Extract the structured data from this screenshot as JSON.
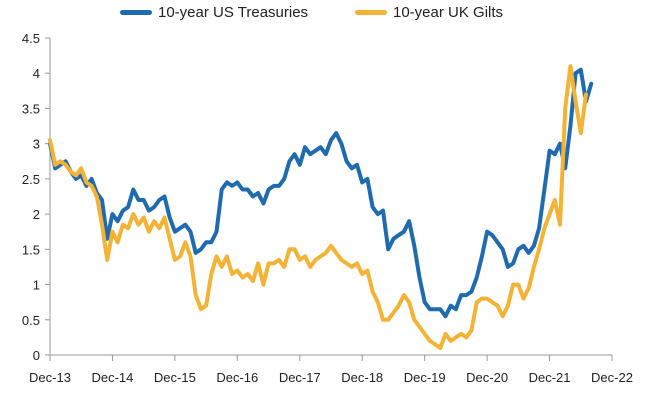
{
  "chart_data": {
    "type": "line",
    "title": "",
    "xlabel": "",
    "ylabel": "",
    "ylim": [
      0,
      4.5
    ],
    "yticks": [
      "0",
      "0.5",
      "1",
      "1.5",
      "2",
      "2.5",
      "3",
      "3.5",
      "4",
      "4.5"
    ],
    "xtick_labels": [
      "Dec-13",
      "Dec-14",
      "Dec-15",
      "Dec-16",
      "Dec-17",
      "Dec-18",
      "Dec-19",
      "Dec-20",
      "Dec-21",
      "Dec-22"
    ],
    "x_unit": "months since Dec-13",
    "grid": false,
    "legend_position": "top",
    "series": [
      {
        "name": "10-year US Treasuries",
        "color": "#1F6BB0",
        "points": [
          [
            0,
            3.0
          ],
          [
            1,
            2.65
          ],
          [
            2,
            2.7
          ],
          [
            3,
            2.75
          ],
          [
            4,
            2.6
          ],
          [
            5,
            2.5
          ],
          [
            6,
            2.55
          ],
          [
            7,
            2.4
          ],
          [
            8,
            2.5
          ],
          [
            9,
            2.3
          ],
          [
            10,
            2.2
          ],
          [
            11,
            1.65
          ],
          [
            12,
            2.0
          ],
          [
            13,
            1.9
          ],
          [
            14,
            2.05
          ],
          [
            15,
            2.1
          ],
          [
            16,
            2.35
          ],
          [
            17,
            2.2
          ],
          [
            18,
            2.2
          ],
          [
            19,
            2.05
          ],
          [
            20,
            2.1
          ],
          [
            21,
            2.2
          ],
          [
            22,
            2.25
          ],
          [
            23,
            1.95
          ],
          [
            24,
            1.75
          ],
          [
            25,
            1.8
          ],
          [
            26,
            1.85
          ],
          [
            27,
            1.75
          ],
          [
            28,
            1.45
          ],
          [
            29,
            1.5
          ],
          [
            30,
            1.6
          ],
          [
            31,
            1.6
          ],
          [
            32,
            1.75
          ],
          [
            33,
            2.35
          ],
          [
            34,
            2.45
          ],
          [
            35,
            2.4
          ],
          [
            36,
            2.45
          ],
          [
            37,
            2.35
          ],
          [
            38,
            2.35
          ],
          [
            39,
            2.25
          ],
          [
            40,
            2.3
          ],
          [
            41,
            2.15
          ],
          [
            42,
            2.35
          ],
          [
            43,
            2.4
          ],
          [
            44,
            2.4
          ],
          [
            45,
            2.5
          ],
          [
            46,
            2.75
          ],
          [
            47,
            2.85
          ],
          [
            48,
            2.7
          ],
          [
            49,
            2.95
          ],
          [
            50,
            2.85
          ],
          [
            51,
            2.9
          ],
          [
            52,
            2.95
          ],
          [
            53,
            2.85
          ],
          [
            54,
            3.05
          ],
          [
            55,
            3.15
          ],
          [
            56,
            3.0
          ],
          [
            57,
            2.75
          ],
          [
            58,
            2.65
          ],
          [
            59,
            2.7
          ],
          [
            60,
            2.45
          ],
          [
            61,
            2.5
          ],
          [
            62,
            2.1
          ],
          [
            63,
            2.0
          ],
          [
            64,
            2.05
          ],
          [
            65,
            1.5
          ],
          [
            66,
            1.65
          ],
          [
            67,
            1.7
          ],
          [
            68,
            1.75
          ],
          [
            69,
            1.9
          ],
          [
            70,
            1.55
          ],
          [
            71,
            1.1
          ],
          [
            72,
            0.75
          ],
          [
            73,
            0.65
          ],
          [
            74,
            0.65
          ],
          [
            75,
            0.65
          ],
          [
            76,
            0.55
          ],
          [
            77,
            0.7
          ],
          [
            78,
            0.65
          ],
          [
            79,
            0.85
          ],
          [
            80,
            0.85
          ],
          [
            81,
            0.9
          ],
          [
            82,
            1.1
          ],
          [
            83,
            1.4
          ],
          [
            84,
            1.75
          ],
          [
            85,
            1.7
          ],
          [
            86,
            1.6
          ],
          [
            87,
            1.5
          ],
          [
            88,
            1.25
          ],
          [
            89,
            1.3
          ],
          [
            90,
            1.5
          ],
          [
            91,
            1.55
          ],
          [
            92,
            1.45
          ],
          [
            93,
            1.55
          ],
          [
            94,
            1.8
          ],
          [
            95,
            2.35
          ],
          [
            96,
            2.9
          ],
          [
            97,
            2.85
          ],
          [
            98,
            3.0
          ],
          [
            99,
            2.65
          ],
          [
            100,
            3.25
          ],
          [
            101,
            4.0
          ],
          [
            102,
            4.05
          ],
          [
            103,
            3.6
          ],
          [
            104,
            3.85
          ]
        ]
      },
      {
        "name": "10-year UK Gilts",
        "color": "#F5B335",
        "points": [
          [
            0,
            3.05
          ],
          [
            1,
            2.7
          ],
          [
            2,
            2.75
          ],
          [
            3,
            2.7
          ],
          [
            4,
            2.6
          ],
          [
            5,
            2.55
          ],
          [
            6,
            2.65
          ],
          [
            7,
            2.45
          ],
          [
            8,
            2.4
          ],
          [
            9,
            2.25
          ],
          [
            10,
            1.85
          ],
          [
            11,
            1.35
          ],
          [
            12,
            1.75
          ],
          [
            13,
            1.6
          ],
          [
            14,
            1.85
          ],
          [
            15,
            1.8
          ],
          [
            16,
            2.0
          ],
          [
            17,
            1.85
          ],
          [
            18,
            1.95
          ],
          [
            19,
            1.75
          ],
          [
            20,
            1.9
          ],
          [
            21,
            1.8
          ],
          [
            22,
            1.95
          ],
          [
            23,
            1.65
          ],
          [
            24,
            1.35
          ],
          [
            25,
            1.4
          ],
          [
            26,
            1.6
          ],
          [
            27,
            1.4
          ],
          [
            28,
            0.85
          ],
          [
            29,
            0.65
          ],
          [
            30,
            0.7
          ],
          [
            31,
            1.15
          ],
          [
            32,
            1.4
          ],
          [
            33,
            1.25
          ],
          [
            34,
            1.4
          ],
          [
            35,
            1.15
          ],
          [
            36,
            1.2
          ],
          [
            37,
            1.1
          ],
          [
            38,
            1.15
          ],
          [
            39,
            1.05
          ],
          [
            40,
            1.3
          ],
          [
            41,
            1.0
          ],
          [
            42,
            1.3
          ],
          [
            43,
            1.3
          ],
          [
            44,
            1.35
          ],
          [
            45,
            1.25
          ],
          [
            46,
            1.5
          ],
          [
            47,
            1.5
          ],
          [
            48,
            1.35
          ],
          [
            49,
            1.4
          ],
          [
            50,
            1.25
          ],
          [
            51,
            1.35
          ],
          [
            52,
            1.4
          ],
          [
            53,
            1.45
          ],
          [
            54,
            1.55
          ],
          [
            55,
            1.45
          ],
          [
            56,
            1.35
          ],
          [
            57,
            1.3
          ],
          [
            58,
            1.25
          ],
          [
            59,
            1.3
          ],
          [
            60,
            1.15
          ],
          [
            61,
            1.2
          ],
          [
            62,
            0.9
          ],
          [
            63,
            0.75
          ],
          [
            64,
            0.5
          ],
          [
            65,
            0.5
          ],
          [
            66,
            0.6
          ],
          [
            67,
            0.7
          ],
          [
            68,
            0.85
          ],
          [
            69,
            0.75
          ],
          [
            70,
            0.5
          ],
          [
            71,
            0.4
          ],
          [
            72,
            0.3
          ],
          [
            73,
            0.2
          ],
          [
            74,
            0.15
          ],
          [
            75,
            0.1
          ],
          [
            76,
            0.3
          ],
          [
            77,
            0.2
          ],
          [
            78,
            0.25
          ],
          [
            79,
            0.3
          ],
          [
            80,
            0.25
          ],
          [
            81,
            0.35
          ],
          [
            82,
            0.75
          ],
          [
            83,
            0.8
          ],
          [
            84,
            0.8
          ],
          [
            85,
            0.75
          ],
          [
            86,
            0.7
          ],
          [
            87,
            0.55
          ],
          [
            88,
            0.7
          ],
          [
            89,
            1.0
          ],
          [
            90,
            1.0
          ],
          [
            91,
            0.8
          ],
          [
            92,
            0.95
          ],
          [
            93,
            1.25
          ],
          [
            94,
            1.5
          ],
          [
            95,
            1.8
          ],
          [
            96,
            2.0
          ],
          [
            97,
            2.2
          ],
          [
            98,
            1.85
          ],
          [
            99,
            3.5
          ],
          [
            100,
            4.1
          ],
          [
            101,
            3.6
          ],
          [
            102,
            3.15
          ],
          [
            103,
            3.7
          ]
        ]
      }
    ]
  }
}
